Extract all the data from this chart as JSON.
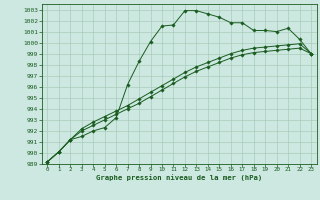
{
  "xlabel": "Graphe pression niveau de la mer (hPa)",
  "bg_color": "#cce8e0",
  "grid_color": "#aaccbb",
  "line_color": "#1a5c20",
  "xlim": [
    -0.5,
    23.5
  ],
  "ylim": [
    989,
    1003.5
  ],
  "yticks": [
    989,
    990,
    991,
    992,
    993,
    994,
    995,
    996,
    997,
    998,
    999,
    1000,
    1001,
    1002,
    1003
  ],
  "xticks": [
    0,
    1,
    2,
    3,
    4,
    5,
    6,
    7,
    8,
    9,
    10,
    11,
    12,
    13,
    14,
    15,
    16,
    17,
    18,
    19,
    20,
    21,
    22,
    23
  ],
  "series": [
    {
      "x": [
        0,
        1,
        2,
        3,
        4,
        5,
        6,
        7,
        8,
        9,
        10,
        11,
        12,
        13,
        14,
        15,
        16,
        17,
        18,
        19,
        20,
        21,
        22,
        23
      ],
      "y": [
        989.2,
        990.1,
        991.2,
        991.5,
        992.0,
        992.3,
        993.2,
        996.2,
        998.3,
        1000.1,
        1001.5,
        1001.6,
        1002.9,
        1002.9,
        1002.6,
        1002.3,
        1001.8,
        1001.8,
        1001.1,
        1001.1,
        1001.0,
        1001.3,
        1000.3,
        999.0
      ]
    },
    {
      "x": [
        0,
        1,
        2,
        3,
        4,
        5,
        6,
        7,
        8,
        9,
        10,
        11,
        12,
        13,
        14,
        15,
        16,
        17,
        18,
        19,
        20,
        21,
        22,
        23
      ],
      "y": [
        989.2,
        990.1,
        991.2,
        992.2,
        992.8,
        993.3,
        993.8,
        994.3,
        994.9,
        995.5,
        996.1,
        996.7,
        997.3,
        997.8,
        998.2,
        998.6,
        999.0,
        999.3,
        999.5,
        999.6,
        999.7,
        999.8,
        999.9,
        999.0
      ]
    },
    {
      "x": [
        0,
        1,
        2,
        3,
        4,
        5,
        6,
        7,
        8,
        9,
        10,
        11,
        12,
        13,
        14,
        15,
        16,
        17,
        18,
        19,
        20,
        21,
        22,
        23
      ],
      "y": [
        989.2,
        990.1,
        991.2,
        992.0,
        992.5,
        993.0,
        993.5,
        994.0,
        994.5,
        995.1,
        995.7,
        996.3,
        996.9,
        997.4,
        997.8,
        998.2,
        998.6,
        998.9,
        999.1,
        999.2,
        999.3,
        999.4,
        999.5,
        999.0
      ]
    }
  ]
}
